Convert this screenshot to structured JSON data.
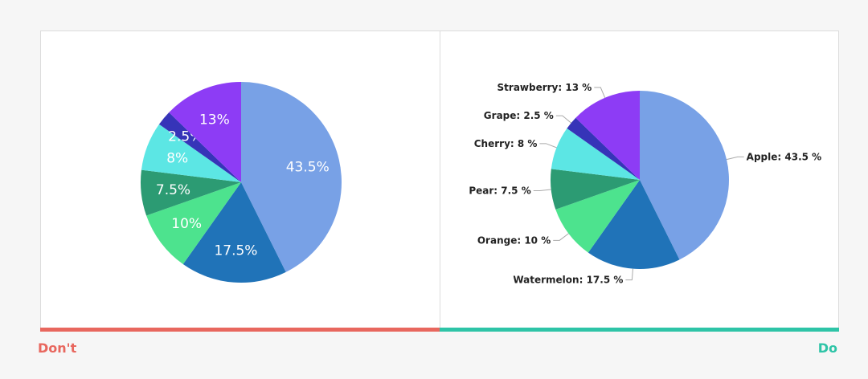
{
  "captions": {
    "dont": "Don't",
    "do": "Do"
  },
  "colors": {
    "dont_accent": "#e8675e",
    "do_accent": "#2ec4a7",
    "leader_line": "#aaaaaa"
  },
  "chart_data": [
    {
      "type": "pie",
      "panel": "dont",
      "title": "",
      "labels_style": "inside-percent",
      "slices": [
        {
          "label": "Apple",
          "value": 43.5,
          "display": "43.5%",
          "color": "#78a1e6"
        },
        {
          "label": "Watermelon",
          "value": 17.5,
          "display": "17.5%",
          "color": "#2073b8"
        },
        {
          "label": "Orange",
          "value": 10,
          "display": "10%",
          "color": "#4de38e"
        },
        {
          "label": "Pear",
          "value": 7.5,
          "display": "7.5%",
          "color": "#2c9b73"
        },
        {
          "label": "Cherry",
          "value": 8,
          "display": "8%",
          "color": "#5ce6e4"
        },
        {
          "label": "Grape",
          "value": 2.5,
          "display": "2.5%",
          "color": "#3634b8"
        },
        {
          "label": "Strawberry",
          "value": 13,
          "display": "13%",
          "color": "#8d3cf5"
        }
      ]
    },
    {
      "type": "pie",
      "panel": "do",
      "title": "",
      "labels_style": "outside-leader-lines",
      "slices": [
        {
          "label": "Apple",
          "value": 43.5,
          "display": "Apple: 43.5 %",
          "color": "#78a1e6"
        },
        {
          "label": "Watermelon",
          "value": 17.5,
          "display": "Watermelon: 17.5 %",
          "color": "#2073b8"
        },
        {
          "label": "Orange",
          "value": 10,
          "display": "Orange: 10 %",
          "color": "#4de38e"
        },
        {
          "label": "Pear",
          "value": 7.5,
          "display": "Pear: 7.5 %",
          "color": "#2c9b73"
        },
        {
          "label": "Cherry",
          "value": 8,
          "display": "Cherry: 8 %",
          "color": "#5ce6e4"
        },
        {
          "label": "Grape",
          "value": 2.5,
          "display": "Grape: 2.5 %",
          "color": "#3634b8"
        },
        {
          "label": "Strawberry",
          "value": 13,
          "display": "Strawberry: 13 %",
          "color": "#8d3cf5"
        }
      ]
    }
  ]
}
